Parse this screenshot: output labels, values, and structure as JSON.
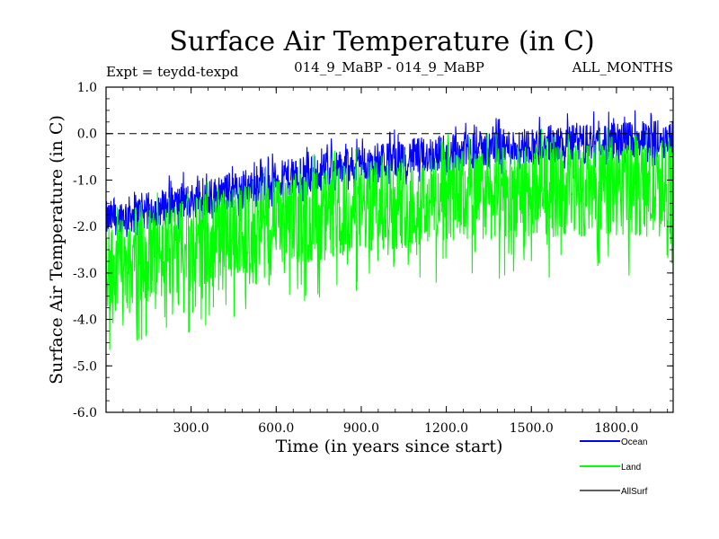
{
  "chart_data": {
    "type": "line",
    "title": "Surface Air Temperature (in C)",
    "subtitle_left": "Expt = teydd-texpd",
    "subtitle_center": "014_9_MaBP - 014_9_MaBP",
    "subtitle_right": "ALL_MONTHS",
    "xlabel": "Time (in years since start)",
    "ylabel": "Surface Air Temperature (in C)",
    "xlim": [
      0,
      2000
    ],
    "ylim": [
      -6.0,
      1.0
    ],
    "xticks": [
      300,
      600,
      900,
      1200,
      1500,
      1800
    ],
    "xtick_labels": [
      "300.0",
      "600.0",
      "900.0",
      "1200.0",
      "1500.0",
      "1800.0"
    ],
    "yticks": [
      1.0,
      0.0,
      -1.0,
      -2.0,
      -3.0,
      -4.0,
      -5.0,
      -6.0
    ],
    "ytick_labels": [
      "1.0",
      "0.0",
      "-1.0",
      "-2.0",
      "-3.0",
      "-4.0",
      "-5.0",
      "-6.0"
    ],
    "reference_line": 0.0,
    "series": [
      {
        "name": "Ocean",
        "color": "#0000ff",
        "trend": [
          [
            0,
            -1.85
          ],
          [
            300,
            -1.45
          ],
          [
            600,
            -1.0
          ],
          [
            900,
            -0.65
          ],
          [
            1200,
            -0.4
          ],
          [
            1500,
            -0.25
          ],
          [
            1800,
            -0.15
          ],
          [
            2000,
            -0.1
          ]
        ],
        "spread_low": 0.35,
        "spread_high": 0.45
      },
      {
        "name": "Land",
        "color": "#00ff00",
        "trend": [
          [
            0,
            -2.9
          ],
          [
            300,
            -2.4
          ],
          [
            600,
            -1.9
          ],
          [
            900,
            -1.6
          ],
          [
            1200,
            -1.35
          ],
          [
            1500,
            -1.25
          ],
          [
            1800,
            -1.2
          ],
          [
            2000,
            -1.25
          ]
        ],
        "spread_low": 1.1,
        "spread_high": 0.9
      },
      {
        "name": "AllSurf",
        "color": "#000000",
        "trend": [],
        "spread_low": 0,
        "spread_high": 0
      }
    ],
    "legend_position": "bottom-right"
  }
}
